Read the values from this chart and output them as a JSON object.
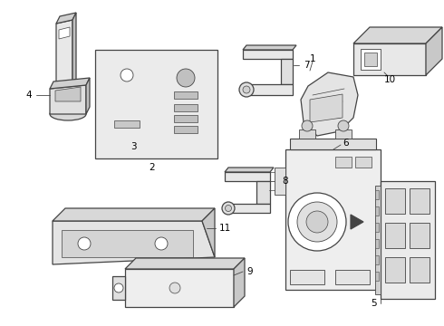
{
  "background_color": "#ffffff",
  "line_color": "#444444",
  "text_color": "#000000",
  "fig_w": 4.9,
  "fig_h": 3.6,
  "dpi": 100
}
